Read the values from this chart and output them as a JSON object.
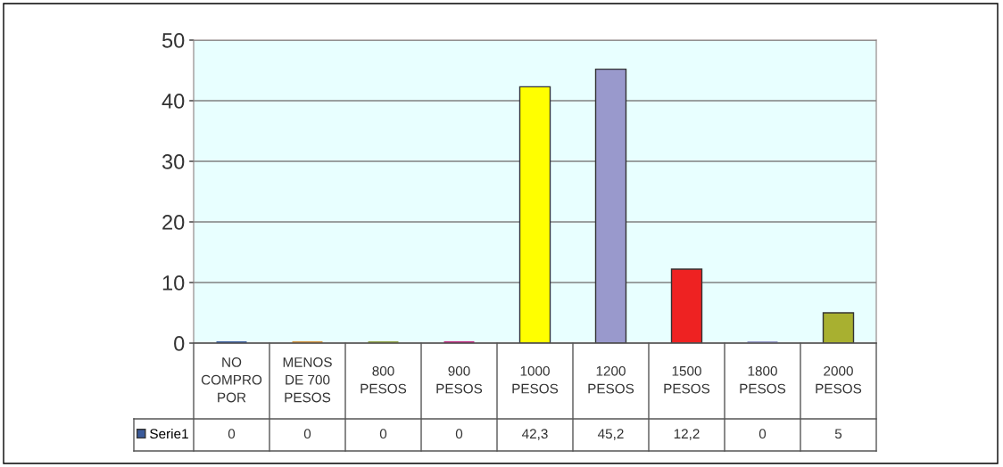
{
  "chart_data": {
    "type": "bar",
    "categories": [
      "NO\nCOMPRO\nPOR",
      "MENOS\nDE 700\nPESOS",
      "800\nPESOS",
      "900\nPESOS",
      "1000\nPESOS",
      "1200\nPESOS",
      "1500\nPESOS",
      "1800\nPESOS",
      "2000\nPESOS"
    ],
    "series": [
      {
        "name": "Serie1",
        "color": "#3a5a9a",
        "colors": [
          "#3a5a9a",
          "#d08a30",
          "#8a9a3a",
          "#c0207a",
          "#ffff00",
          "#9999cc",
          "#ee2222",
          "#9090c0",
          "#a8b030"
        ],
        "values": [
          0,
          0,
          0,
          0,
          42.3,
          45.2,
          12.2,
          0,
          5
        ],
        "value_labels": [
          "0",
          "0",
          "0",
          "0",
          "42,3",
          "45,2",
          "12,2",
          "0",
          "5"
        ]
      }
    ],
    "ylim": [
      0,
      50
    ],
    "yticks": [
      0,
      10,
      20,
      30,
      40,
      50
    ],
    "grid": "y",
    "legend": "bottom"
  }
}
